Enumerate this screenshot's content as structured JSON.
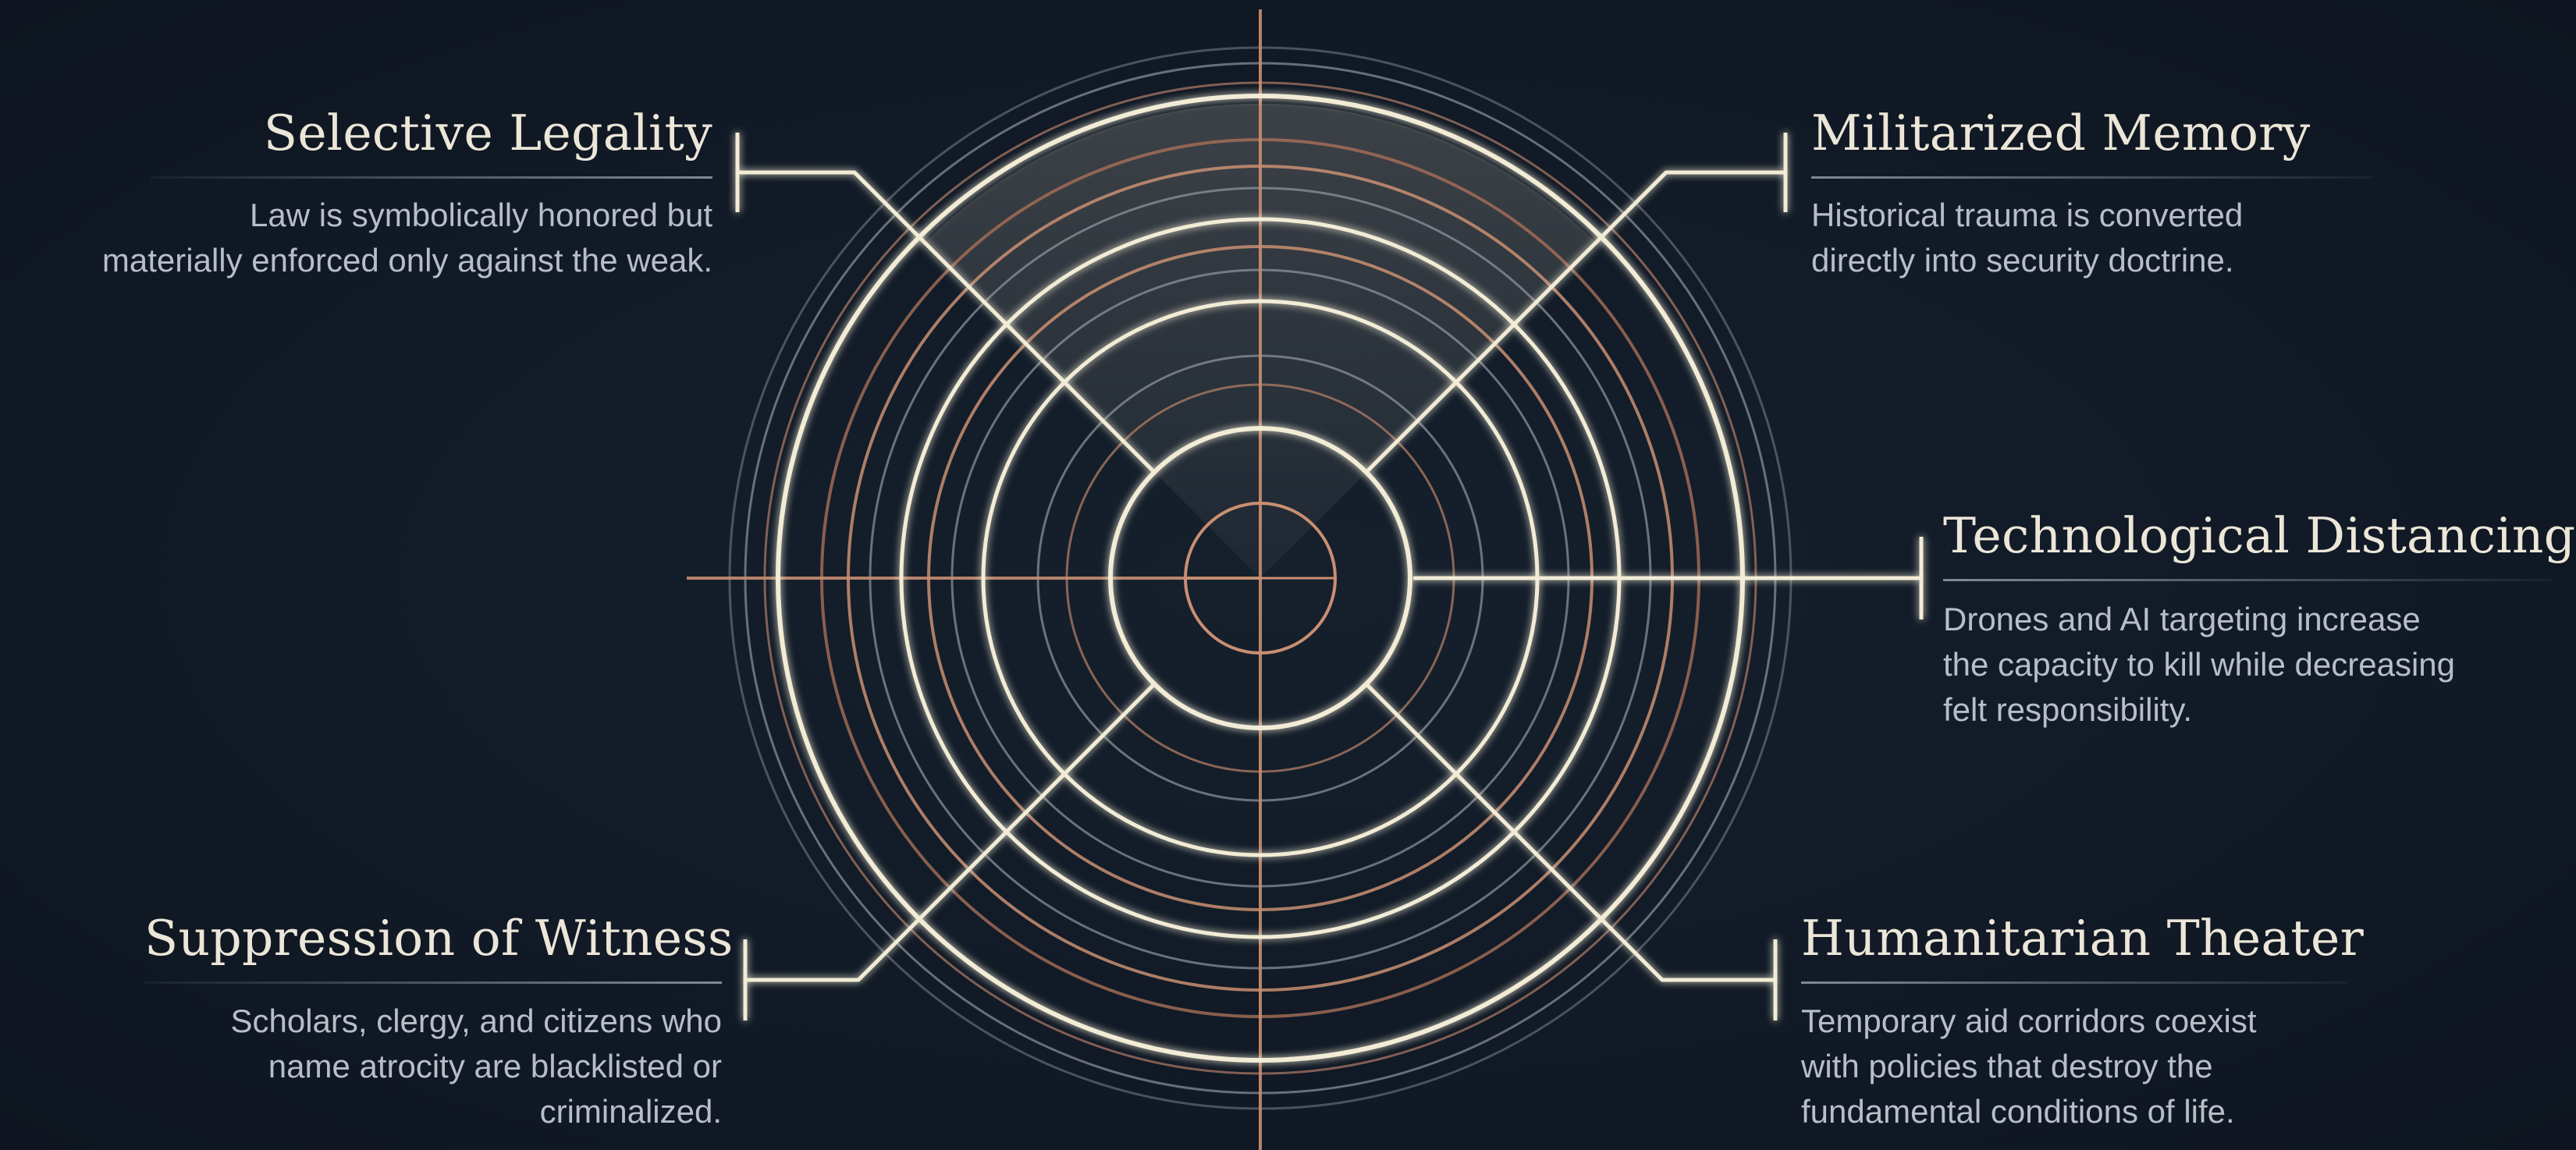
{
  "diagram": {
    "colors": {
      "background": "#111a26",
      "cream_line": "#f2ecd6",
      "copper_line": "#c98f72",
      "grey_line": "#8f949c",
      "title_text": "#ece6d8",
      "body_text": "#b8bec8"
    },
    "labels": {
      "selective_legality": {
        "title": "Selective Legality",
        "lines": [
          "Law is symbolically honored but",
          "materially enforced only against the weak."
        ]
      },
      "militarized_memory": {
        "title": "Militarized Memory",
        "lines": [
          "Historical trauma is converted",
          "directly into security doctrine."
        ]
      },
      "technological_distancing": {
        "title": "Technological Distancing",
        "lines": [
          "Drones and AI targeting increase",
          "the capacity to kill while decreasing",
          "felt responsibility."
        ]
      },
      "suppression_of_witness": {
        "title": "Suppression of Witness",
        "lines": [
          "Scholars, clergy, and citizens who",
          "name atrocity are blacklisted or",
          "criminalized."
        ]
      },
      "humanitarian_theater": {
        "title": "Humanitarian Theater",
        "lines": [
          "Temporary aid corridors coexist",
          "with policies that destroy the",
          "fundamental conditions of life."
        ]
      }
    }
  }
}
